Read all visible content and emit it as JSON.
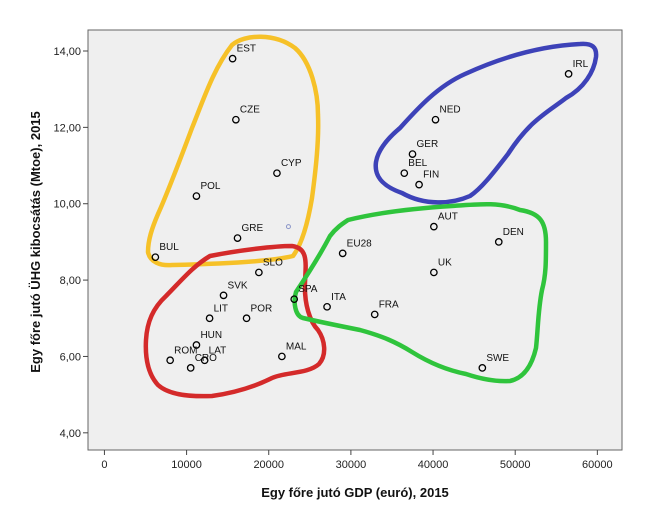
{
  "chart_data": {
    "type": "scatter",
    "xlabel": "Egy főre jutó GDP (euró), 2015",
    "ylabel": "Egy főre jutó ÜHG kibocsátás (Mtoe), 2015",
    "xlim": [
      -2000,
      63000
    ],
    "ylim": [
      3.55,
      14.55
    ],
    "x_ticks": [
      0,
      10000,
      20000,
      30000,
      40000,
      50000,
      60000
    ],
    "x_tick_labels": [
      "0",
      "10000",
      "20000",
      "30000",
      "40000",
      "50000",
      "60000"
    ],
    "y_ticks": [
      4,
      6,
      8,
      10,
      12,
      14
    ],
    "y_tick_labels": [
      "4,00",
      "6,00",
      "8,00",
      "10,00",
      "12,00",
      "14,00"
    ],
    "grid": false,
    "points": [
      {
        "label": "EST",
        "x": 15600,
        "y": 13.8
      },
      {
        "label": "CZE",
        "x": 16000,
        "y": 12.2
      },
      {
        "label": "CYP",
        "x": 21000,
        "y": 10.8
      },
      {
        "label": "POL",
        "x": 11200,
        "y": 10.2
      },
      {
        "label": "GRE",
        "x": 16200,
        "y": 9.1
      },
      {
        "label": "BUL",
        "x": 6200,
        "y": 8.6
      },
      {
        "label": "",
        "x": 22400,
        "y": 9.4
      },
      {
        "label": "SLO",
        "x": 18800,
        "y": 8.2
      },
      {
        "label": "SVK",
        "x": 14500,
        "y": 7.6
      },
      {
        "label": "LIT",
        "x": 12800,
        "y": 7.0
      },
      {
        "label": "POR",
        "x": 17300,
        "y": 7.0
      },
      {
        "label": "HUN",
        "x": 11200,
        "y": 6.3
      },
      {
        "label": "ROM",
        "x": 8000,
        "y": 5.9
      },
      {
        "label": "LAT",
        "x": 12200,
        "y": 5.9
      },
      {
        "label": "CRO",
        "x": 10500,
        "y": 5.7
      },
      {
        "label": "MAL",
        "x": 21600,
        "y": 6.0
      },
      {
        "label": "IRL",
        "x": 56500,
        "y": 13.4
      },
      {
        "label": "NED",
        "x": 40300,
        "y": 12.2
      },
      {
        "label": "GER",
        "x": 37500,
        "y": 11.3
      },
      {
        "label": "BEL",
        "x": 36500,
        "y": 10.8
      },
      {
        "label": "FIN",
        "x": 38300,
        "y": 10.5
      },
      {
        "label": "AUT",
        "x": 40100,
        "y": 9.4
      },
      {
        "label": "EU28",
        "x": 29000,
        "y": 8.7
      },
      {
        "label": "DEN",
        "x": 48000,
        "y": 9.0
      },
      {
        "label": "UK",
        "x": 40100,
        "y": 8.2
      },
      {
        "label": "SPA",
        "x": 23100,
        "y": 7.5
      },
      {
        "label": "ITA",
        "x": 27100,
        "y": 7.3
      },
      {
        "label": "FRA",
        "x": 32900,
        "y": 7.1
      },
      {
        "label": "SWE",
        "x": 46000,
        "y": 5.7
      }
    ],
    "clusters": [
      {
        "color": "#f6c128",
        "members": [
          "EST",
          "CZE",
          "CYP",
          "POL",
          "GRE",
          "BUL"
        ]
      },
      {
        "color": "#d42a2a",
        "members": [
          "SLO",
          "SVK",
          "LIT",
          "POR",
          "HUN",
          "ROM",
          "LAT",
          "CRO",
          "MAL"
        ]
      },
      {
        "color": "#3d42b8",
        "members": [
          "IRL",
          "NED",
          "GER",
          "BEL",
          "FIN"
        ]
      },
      {
        "color": "#2fc43c",
        "members": [
          "AUT",
          "EU28",
          "DEN",
          "UK",
          "SPA",
          "ITA",
          "FRA",
          "SWE"
        ]
      }
    ]
  }
}
